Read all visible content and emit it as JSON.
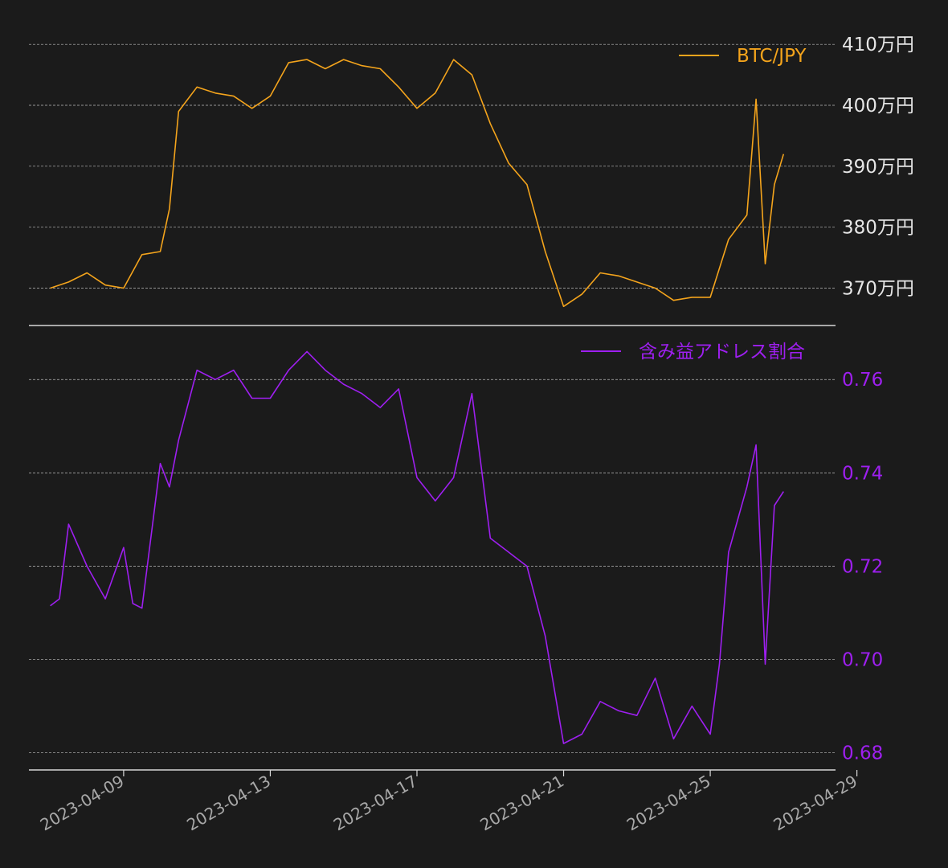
{
  "chart_data": [
    {
      "type": "line",
      "series": [
        {
          "name": "BTC/JPY",
          "color": "#f4a41c",
          "x": [
            "2023-04-07",
            "2023-04-07 12:00",
            "2023-04-08",
            "2023-04-08 12:00",
            "2023-04-09",
            "2023-04-09 12:00",
            "2023-04-10",
            "2023-04-10 06:00",
            "2023-04-10 12:00",
            "2023-04-11",
            "2023-04-11 12:00",
            "2023-04-12",
            "2023-04-12 12:00",
            "2023-04-13",
            "2023-04-13 12:00",
            "2023-04-14",
            "2023-04-14 12:00",
            "2023-04-15",
            "2023-04-15 12:00",
            "2023-04-16",
            "2023-04-16 12:00",
            "2023-04-17",
            "2023-04-17 12:00",
            "2023-04-18",
            "2023-04-18 12:00",
            "2023-04-19",
            "2023-04-19 12:00",
            "2023-04-20",
            "2023-04-20 12:00",
            "2023-04-21",
            "2023-04-21 12:00",
            "2023-04-22",
            "2023-04-22 12:00",
            "2023-04-23",
            "2023-04-23 12:00",
            "2023-04-24",
            "2023-04-24 12:00",
            "2023-04-25",
            "2023-04-25 12:00",
            "2023-04-26",
            "2023-04-26 06:00",
            "2023-04-26 12:00",
            "2023-04-26 18:00",
            "2023-04-27"
          ],
          "y": [
            3700000,
            3710000,
            3725000,
            3705000,
            3700000,
            3755000,
            3760000,
            3830000,
            3990000,
            4030000,
            4020000,
            4015000,
            3995000,
            4015000,
            4070000,
            4075000,
            4060000,
            4075000,
            4065000,
            4060000,
            4030000,
            3995000,
            4020000,
            4075000,
            4050000,
            3970000,
            3905000,
            3870000,
            3760000,
            3670000,
            3690000,
            3725000,
            3720000,
            3710000,
            3700000,
            3680000,
            3685000,
            3685000,
            3780000,
            3820000,
            4010000,
            3740000,
            3870000,
            3920000
          ]
        }
      ],
      "y_ticks": [
        3700000,
        3800000,
        3900000,
        4000000,
        4100000
      ],
      "y_tick_labels": [
        "370万円",
        "380万円",
        "390万円",
        "400万円",
        "410万円"
      ],
      "ylim": [
        3640000,
        4120000
      ],
      "grid": true,
      "legend_position": "top-right"
    },
    {
      "type": "line",
      "series": [
        {
          "name": "含み益アドレス割合",
          "color": "#9e1ff0",
          "x": [
            "2023-04-07",
            "2023-04-07 06:00",
            "2023-04-07 12:00",
            "2023-04-08",
            "2023-04-08 12:00",
            "2023-04-09",
            "2023-04-09 06:00",
            "2023-04-09 12:00",
            "2023-04-10",
            "2023-04-10 06:00",
            "2023-04-10 12:00",
            "2023-04-11",
            "2023-04-11 12:00",
            "2023-04-12",
            "2023-04-12 12:00",
            "2023-04-13",
            "2023-04-13 12:00",
            "2023-04-14",
            "2023-04-14 12:00",
            "2023-04-15",
            "2023-04-15 12:00",
            "2023-04-16",
            "2023-04-16 12:00",
            "2023-04-17",
            "2023-04-17 12:00",
            "2023-04-18",
            "2023-04-18 12:00",
            "2023-04-19",
            "2023-04-19 12:00",
            "2023-04-20",
            "2023-04-20 12:00",
            "2023-04-21",
            "2023-04-21 12:00",
            "2023-04-22",
            "2023-04-22 12:00",
            "2023-04-23",
            "2023-04-23 12:00",
            "2023-04-24",
            "2023-04-24 12:00",
            "2023-04-25",
            "2023-04-25 06:00",
            "2023-04-25 12:00",
            "2023-04-26",
            "2023-04-26 06:00",
            "2023-04-26 12:00",
            "2023-04-26 18:00",
            "2023-04-27"
          ],
          "y": [
            0.7115,
            0.713,
            0.729,
            0.72,
            0.713,
            0.724,
            0.712,
            0.711,
            0.742,
            0.737,
            0.747,
            0.762,
            0.76,
            0.762,
            0.756,
            0.756,
            0.762,
            0.766,
            0.762,
            0.759,
            0.757,
            0.754,
            0.758,
            0.739,
            0.734,
            0.739,
            0.757,
            0.726,
            0.723,
            0.72,
            0.705,
            0.682,
            0.684,
            0.691,
            0.689,
            0.688,
            0.696,
            0.683,
            0.69,
            0.684,
            0.699,
            0.723,
            0.737,
            0.746,
            0.699,
            0.733,
            0.736
          ]
        }
      ],
      "y_ticks": [
        0.68,
        0.7,
        0.72,
        0.74,
        0.76
      ],
      "y_tick_labels": [
        "0.68",
        "0.70",
        "0.72",
        "0.74",
        "0.76"
      ],
      "ylim": [
        0.6765,
        0.769
      ],
      "grid": true,
      "legend_position": "top-right"
    }
  ],
  "x_axis": {
    "ticks": [
      "2023-04-09",
      "2023-04-13",
      "2023-04-17",
      "2023-04-21",
      "2023-04-25",
      "2023-04-29"
    ],
    "xlim": [
      "2023-04-06 10:00",
      "2023-04-28 10:00"
    ]
  }
}
